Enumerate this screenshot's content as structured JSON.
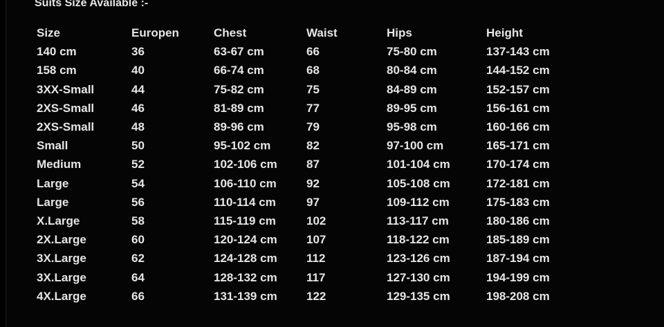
{
  "header": {
    "title": "Suits Size Available :-"
  },
  "table": {
    "columns": [
      "Size",
      "Europen",
      "Chest",
      "Waist",
      "Hips",
      "Height"
    ],
    "rows": [
      [
        "140 cm",
        "36",
        "63-67 cm",
        "66",
        "75-80 cm",
        "137-143 cm"
      ],
      [
        "158 cm",
        "40",
        "66-74 cm",
        "68",
        "80-84 cm",
        "144-152 cm"
      ],
      [
        "3XX-Small",
        "44",
        "75-82 cm",
        "75",
        "84-89 cm",
        "152-157 cm"
      ],
      [
        "2XS-Small",
        "46",
        "81-89 cm",
        "77",
        "89-95 cm",
        "156-161 cm"
      ],
      [
        "2XS-Small",
        "48",
        "89-96 cm",
        "79",
        "95-98 cm",
        "160-166 cm"
      ],
      [
        "Small",
        "50",
        "95-102 cm",
        "82",
        "97-100 cm",
        "165-171 cm"
      ],
      [
        "Medium",
        "52",
        "102-106 cm",
        "87",
        "101-104 cm",
        "170-174 cm"
      ],
      [
        "Large",
        "54",
        "106-110 cm",
        "92",
        "105-108 cm",
        "172-181 cm"
      ],
      [
        "Large",
        "56",
        "110-114 cm",
        "97",
        "109-112 cm",
        "175-183 cm"
      ],
      [
        "X.Large",
        "58",
        "115-119 cm",
        "102",
        "113-117 cm",
        "180-186 cm"
      ],
      [
        "2X.Large",
        "60",
        "120-124 cm",
        "107",
        "118-122 cm",
        "185-189 cm"
      ],
      [
        "3X.Large",
        "62",
        "124-128 cm",
        "112",
        "123-126 cm",
        "187-194 cm"
      ],
      [
        "3X.Large",
        "64",
        "128-132 cm",
        "117",
        "127-130 cm",
        "194-199 cm"
      ],
      [
        "4X.Large",
        "66",
        "131-139 cm",
        "122",
        "129-135 cm",
        "198-208 cm"
      ]
    ]
  }
}
